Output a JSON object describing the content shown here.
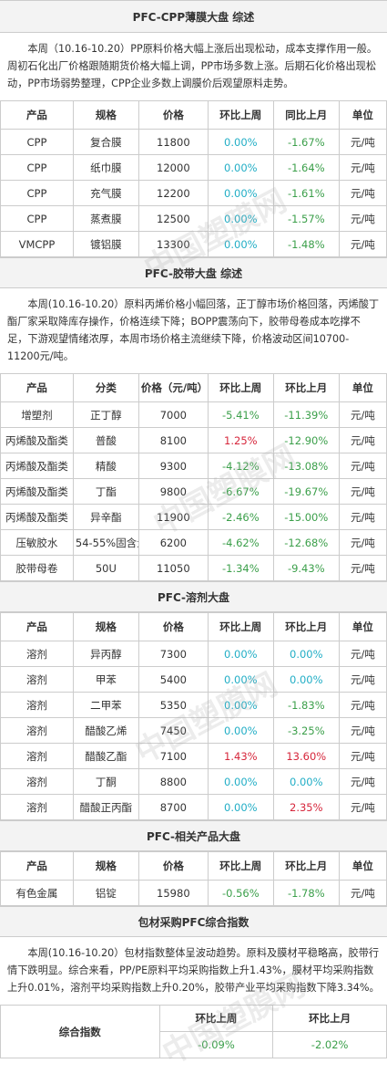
{
  "watermark": "中国塑膜网",
  "sections": [
    {
      "title": "PFC-CPP薄膜大盘 综述",
      "text": "本周（10.16-10.20）PP原料价格大幅上涨后出现松动，成本支撑作用一般。周初石化出厂价格跟随期货价格大幅上调，PP市场多数上涨。后期石化价格出现松动，PP市场弱势整理，CPP企业多数上调膜价后观望原料走势。",
      "table": {
        "columns": [
          "产品",
          "规格",
          "价格",
          "环比上周",
          "同比上月",
          "单位"
        ],
        "rows": [
          [
            "CPP",
            "复合膜",
            11800,
            "0.00%",
            "-1.67%",
            "元/吨"
          ],
          [
            "CPP",
            "纸巾膜",
            12000,
            "0.00%",
            "-1.64%",
            "元/吨"
          ],
          [
            "CPP",
            "充气膜",
            12200,
            "0.00%",
            "-1.61%",
            "元/吨"
          ],
          [
            "CPP",
            "蒸煮膜",
            12500,
            "0.00%",
            "-1.57%",
            "元/吨"
          ],
          [
            "VMCPP",
            "镀铝膜",
            13300,
            "0.00%",
            "-1.48%",
            "元/吨"
          ]
        ]
      }
    },
    {
      "title": "PFC-胶带大盘 综述",
      "text": "本周(10.16-10.20）原料丙烯价格小幅回落，正丁醇市场价格回落，丙烯酸丁酯厂家采取降库存操作，价格连续下降；BOPP震荡向下，胶带母卷成本吃撑不足，下游观望情绪浓厚，本周市场价格主流继续下降，价格波动区间10700-11200元/吨。",
      "table": {
        "columns": [
          "产品",
          "分类",
          "价格（元/吨）",
          "环比上周",
          "环比上月",
          "单位"
        ],
        "rows": [
          [
            "增塑剂",
            "正丁醇",
            7000,
            "-5.41%",
            "-11.39%",
            "元/吨"
          ],
          [
            "丙烯酸及酯类",
            "普酸",
            8100,
            "1.25%",
            "-12.90%",
            "元/吨"
          ],
          [
            "丙烯酸及酯类",
            "精酸",
            9300,
            "-4.12%",
            "-13.08%",
            "元/吨"
          ],
          [
            "丙烯酸及酯类",
            "丁酯",
            9800,
            "-6.67%",
            "-19.67%",
            "元/吨"
          ],
          [
            "丙烯酸及酯类",
            "异辛酯",
            11900,
            "-2.46%",
            "-15.00%",
            "元/吨"
          ],
          [
            "压敏胶水",
            "54-55%固含量",
            6200,
            "-4.62%",
            "-12.68%",
            "元/吨"
          ],
          [
            "胶带母卷",
            "50U",
            11050,
            "-1.34%",
            "-9.43%",
            "元/吨"
          ]
        ]
      }
    },
    {
      "title": "PFC-溶剂大盘",
      "table": {
        "columns": [
          "产品",
          "规格",
          "价格",
          "环比上周",
          "环比上月",
          "单位"
        ],
        "rows": [
          [
            "溶剂",
            "异丙醇",
            7300,
            "0.00%",
            "0.00%",
            "元/吨"
          ],
          [
            "溶剂",
            "甲苯",
            5400,
            "0.00%",
            "0.00%",
            "元/吨"
          ],
          [
            "溶剂",
            "二甲苯",
            5350,
            "0.00%",
            "-1.83%",
            "元/吨"
          ],
          [
            "溶剂",
            "醋酸乙烯",
            7450,
            "0.00%",
            "-3.25%",
            "元/吨"
          ],
          [
            "溶剂",
            "醋酸乙酯",
            7100,
            "1.43%",
            "13.60%",
            "元/吨"
          ],
          [
            "溶剂",
            "丁酮",
            8800,
            "0.00%",
            "0.00%",
            "元/吨"
          ],
          [
            "溶剂",
            "醋酸正丙酯",
            8700,
            "0.00%",
            "2.35%",
            "元/吨"
          ]
        ]
      }
    },
    {
      "title": "PFC-相关产品大盘",
      "table": {
        "columns": [
          "产品",
          "规格",
          "价格",
          "环比上周",
          "环比上月",
          "单位"
        ],
        "rows": [
          [
            "有色金属",
            "铝锭",
            15980,
            "-0.56%",
            "-1.78%",
            "元/吨"
          ]
        ]
      }
    },
    {
      "title": "包材采购PFC综合指数",
      "text": "本周(10.16-10.20）包材指数整体呈波动趋势。原料及膜材平稳略高，胶带行情下跌明显。综合来看，PP/PE原料平均采购指数上升1.43%，膜材平均采购指数上升0.01%，溶剂平均采购指数上升0.20%，胶带产业平均采购指数下降3.34%。",
      "table": {
        "label": "综合指数",
        "columns": [
          "环比上周",
          "环比上月"
        ],
        "rows": [
          [
            "-0.09%",
            "-2.02%"
          ]
        ]
      }
    }
  ]
}
